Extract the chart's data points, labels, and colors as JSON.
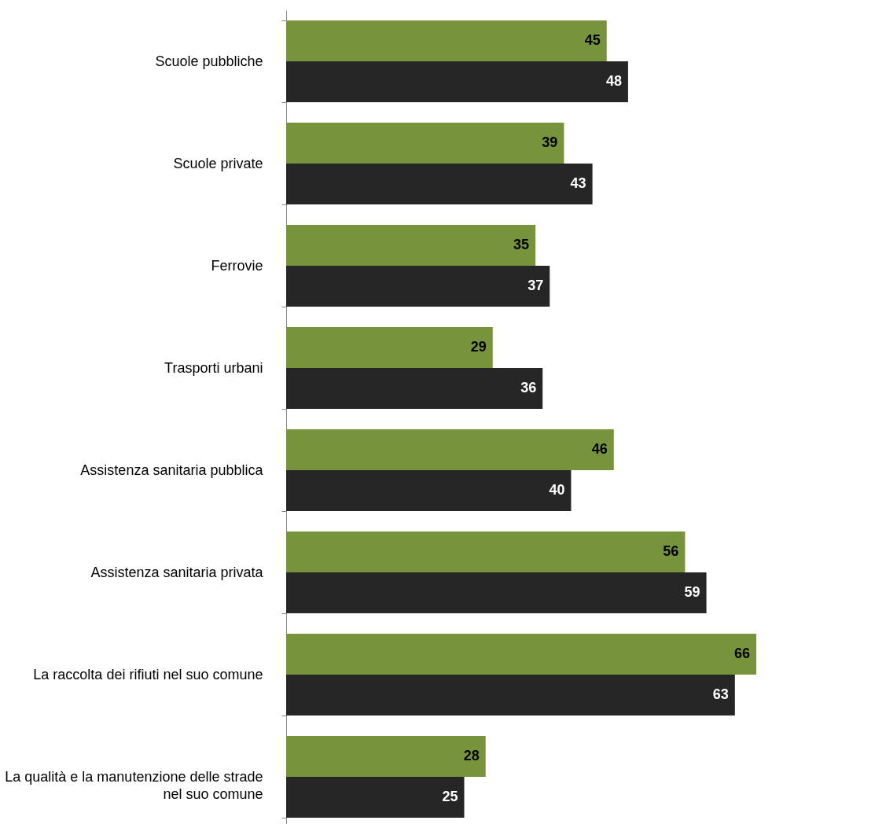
{
  "chart_data": {
    "type": "bar",
    "orientation": "horizontal",
    "data_labels": true,
    "legend": false,
    "tick_labels": "y",
    "categories": [
      "Scuole pubbliche",
      "Scuole private",
      "Ferrovie",
      "Trasporti urbani",
      "Assistenza sanitaria pubblica",
      "Assistenza sanitaria privata",
      "La raccolta dei rifiuti nel suo comune",
      "La qualità e la manutenzione delle strade nel suo comune"
    ],
    "series": [
      {
        "color": "#77933c",
        "values": [
          45,
          39,
          35,
          29,
          46,
          56,
          66,
          28
        ]
      },
      {
        "color": "#262626",
        "values": [
          48,
          43,
          37,
          36,
          40,
          59,
          63,
          25
        ]
      }
    ]
  }
}
